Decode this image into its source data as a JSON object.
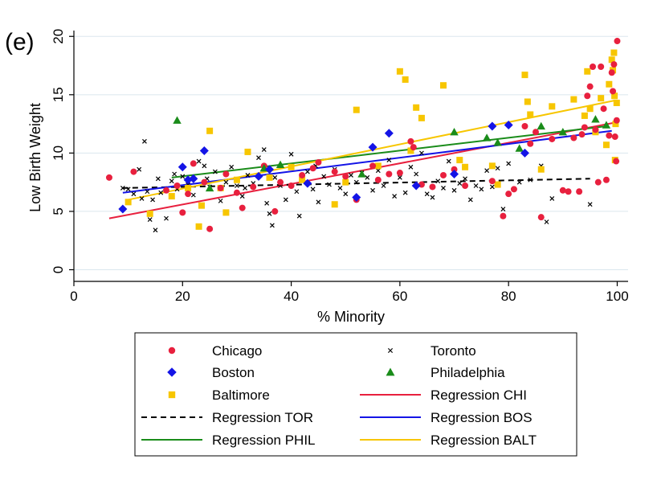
{
  "chart_data": {
    "type": "scatter",
    "panel_label": "(e)",
    "xlabel": "% Minority",
    "ylabel": "Low Birth Weight",
    "xlim": [
      0,
      102
    ],
    "ylim": [
      -1,
      20.5
    ],
    "xticks": [
      0,
      20,
      40,
      60,
      80,
      100
    ],
    "yticks": [
      0,
      5,
      10,
      15,
      20
    ],
    "grid": "horizontal",
    "legend_position": "bottom",
    "series": [
      {
        "name": "Chicago",
        "marker": "circle",
        "color": "#e8203e",
        "points": [
          [
            6.5,
            7.9
          ],
          [
            11,
            8.4
          ],
          [
            17,
            6.8
          ],
          [
            19,
            7.2
          ],
          [
            20,
            4.9
          ],
          [
            21,
            6.5
          ],
          [
            22,
            9.1
          ],
          [
            24,
            7.5
          ],
          [
            25,
            3.5
          ],
          [
            27,
            7.0
          ],
          [
            28,
            8.2
          ],
          [
            30,
            6.6
          ],
          [
            31,
            5.3
          ],
          [
            33,
            7.1
          ],
          [
            35,
            8.9
          ],
          [
            37,
            5.0
          ],
          [
            38,
            7.5
          ],
          [
            40,
            7.2
          ],
          [
            42,
            8.1
          ],
          [
            44,
            8.7
          ],
          [
            45,
            9.2
          ],
          [
            48,
            8.4
          ],
          [
            50,
            8.0
          ],
          [
            52,
            6.0
          ],
          [
            55,
            8.9
          ],
          [
            56,
            7.7
          ],
          [
            58,
            8.2
          ],
          [
            60,
            8.3
          ],
          [
            62,
            11.0
          ],
          [
            62.5,
            10.5
          ],
          [
            64,
            7.3
          ],
          [
            66,
            7.1
          ],
          [
            68,
            8.1
          ],
          [
            70,
            8.6
          ],
          [
            72,
            7.2
          ],
          [
            77,
            7.6
          ],
          [
            79,
            4.6
          ],
          [
            80,
            6.5
          ],
          [
            81,
            6.9
          ],
          [
            83,
            12.3
          ],
          [
            84,
            10.8
          ],
          [
            85,
            11.8
          ],
          [
            86,
            4.5
          ],
          [
            88,
            11.2
          ],
          [
            90,
            6.8
          ],
          [
            91,
            6.7
          ],
          [
            92,
            11.3
          ],
          [
            93,
            6.7
          ],
          [
            93.5,
            11.6
          ],
          [
            94,
            12.2
          ],
          [
            94.5,
            14.9
          ],
          [
            95,
            15.7
          ],
          [
            95.5,
            17.4
          ],
          [
            96,
            12.0
          ],
          [
            96.5,
            7.5
          ],
          [
            97,
            17.4
          ],
          [
            97.5,
            13.8
          ],
          [
            98,
            7.7
          ],
          [
            98.5,
            11.5
          ],
          [
            99,
            16.9
          ],
          [
            99.2,
            15.3
          ],
          [
            99.4,
            17.6
          ],
          [
            99.6,
            11.4
          ],
          [
            99.8,
            9.3
          ],
          [
            100,
            19.6
          ],
          [
            99.9,
            12.8
          ]
        ]
      },
      {
        "name": "Boston",
        "marker": "diamond",
        "color": "#1414e6",
        "points": [
          [
            9,
            5.2
          ],
          [
            20,
            8.8
          ],
          [
            21,
            7.7
          ],
          [
            22,
            7.8
          ],
          [
            24,
            10.2
          ],
          [
            34,
            8.0
          ],
          [
            36,
            8.6
          ],
          [
            43,
            7.4
          ],
          [
            52,
            6.2
          ],
          [
            55,
            10.5
          ],
          [
            58,
            11.7
          ],
          [
            63,
            7.2
          ],
          [
            70,
            8.2
          ],
          [
            77,
            12.3
          ],
          [
            80,
            12.4
          ],
          [
            83,
            10.0
          ]
        ]
      },
      {
        "name": "Philadelphia",
        "marker": "triangle",
        "color": "#1a8c1a",
        "points": [
          [
            19,
            12.8
          ],
          [
            25,
            7.0
          ],
          [
            35,
            8.7
          ],
          [
            38,
            9.0
          ],
          [
            53,
            8.2
          ],
          [
            70,
            11.8
          ],
          [
            76,
            11.3
          ],
          [
            78,
            10.9
          ],
          [
            82,
            10.4
          ],
          [
            86,
            12.3
          ],
          [
            90,
            11.8
          ],
          [
            96,
            12.9
          ],
          [
            98,
            12.4
          ]
        ]
      },
      {
        "name": "Baltimore",
        "marker": "square",
        "color": "#f7c600",
        "points": [
          [
            10,
            5.8
          ],
          [
            14,
            4.8
          ],
          [
            18,
            6.3
          ],
          [
            21,
            7.0
          ],
          [
            23,
            3.7
          ],
          [
            23.5,
            5.5
          ],
          [
            25,
            11.9
          ],
          [
            27,
            7.0
          ],
          [
            28,
            4.9
          ],
          [
            30,
            7.7
          ],
          [
            32,
            10.1
          ],
          [
            36,
            7.9
          ],
          [
            40,
            8.8
          ],
          [
            42,
            7.7
          ],
          [
            48,
            5.6
          ],
          [
            50,
            7.5
          ],
          [
            52,
            13.7
          ],
          [
            56,
            8.9
          ],
          [
            60,
            17.0
          ],
          [
            61,
            16.3
          ],
          [
            62,
            10.2
          ],
          [
            63,
            13.9
          ],
          [
            64,
            13.0
          ],
          [
            68,
            15.8
          ],
          [
            71,
            9.4
          ],
          [
            72,
            8.8
          ],
          [
            77,
            8.9
          ],
          [
            78,
            7.3
          ],
          [
            83,
            16.7
          ],
          [
            83.5,
            14.4
          ],
          [
            84,
            13.3
          ],
          [
            86,
            8.6
          ],
          [
            88,
            14.0
          ],
          [
            92,
            14.6
          ],
          [
            94,
            13.2
          ],
          [
            94.5,
            17.0
          ],
          [
            95,
            13.8
          ],
          [
            96,
            11.8
          ],
          [
            97,
            14.7
          ],
          [
            98,
            10.7
          ],
          [
            98.5,
            15.9
          ],
          [
            99,
            18.0
          ],
          [
            99.2,
            17.1
          ],
          [
            99.4,
            18.6
          ],
          [
            99.5,
            14.9
          ],
          [
            99.6,
            9.4
          ],
          [
            99.7,
            12.5
          ],
          [
            99.9,
            14.3
          ]
        ]
      },
      {
        "name": "Toronto",
        "marker": "x",
        "color": "#000000",
        "points": [
          [
            9,
            7.0
          ],
          [
            10,
            6.9
          ],
          [
            11,
            6.5
          ],
          [
            12,
            8.6
          ],
          [
            12.5,
            6.1
          ],
          [
            13,
            11.0
          ],
          [
            13.5,
            6.7
          ],
          [
            14,
            4.3
          ],
          [
            14.5,
            6.0
          ],
          [
            15,
            3.4
          ],
          [
            15.5,
            7.8
          ],
          [
            16,
            6.6
          ],
          [
            17,
            4.4
          ],
          [
            18,
            7.6
          ],
          [
            19,
            6.9
          ],
          [
            20,
            8.0
          ],
          [
            21,
            7.3
          ],
          [
            22,
            6.4
          ],
          [
            23,
            9.3
          ],
          [
            24,
            8.9
          ],
          [
            25,
            7.1
          ],
          [
            26,
            8.4
          ],
          [
            27,
            5.9
          ],
          [
            28,
            7.5
          ],
          [
            29,
            8.8
          ],
          [
            30,
            7.2
          ],
          [
            31,
            6.3
          ],
          [
            32,
            8.1
          ],
          [
            33,
            7.4
          ],
          [
            34,
            9.6
          ],
          [
            35,
            10.3
          ],
          [
            35.5,
            5.7
          ],
          [
            36,
            4.8
          ],
          [
            36.5,
            3.8
          ],
          [
            37,
            7.9
          ],
          [
            38,
            7.2
          ],
          [
            39,
            6.0
          ],
          [
            40,
            9.9
          ],
          [
            41,
            6.7
          ],
          [
            41.5,
            4.6
          ],
          [
            42,
            7.7
          ],
          [
            43,
            8.4
          ],
          [
            44,
            6.9
          ],
          [
            45,
            5.8
          ],
          [
            46,
            8.0
          ],
          [
            47,
            7.3
          ],
          [
            48,
            8.6
          ],
          [
            49,
            7.0
          ],
          [
            50,
            6.5
          ],
          [
            51,
            8.1
          ],
          [
            52,
            7.5
          ],
          [
            53,
            8.3
          ],
          [
            54,
            7.9
          ],
          [
            55,
            6.8
          ],
          [
            56,
            8.5
          ],
          [
            57,
            7.2
          ],
          [
            58,
            9.4
          ],
          [
            59,
            6.3
          ],
          [
            60,
            7.9
          ],
          [
            61,
            6.6
          ],
          [
            62,
            8.8
          ],
          [
            63,
            8.2
          ],
          [
            64,
            10.0
          ],
          [
            65,
            6.5
          ],
          [
            66,
            6.2
          ],
          [
            67,
            7.6
          ],
          [
            68,
            7.0
          ],
          [
            69,
            9.3
          ],
          [
            70,
            6.8
          ],
          [
            71,
            7.4
          ],
          [
            72,
            7.8
          ],
          [
            73,
            6.0
          ],
          [
            74,
            7.2
          ],
          [
            75,
            6.9
          ],
          [
            76,
            8.5
          ],
          [
            77,
            7.1
          ],
          [
            78,
            8.7
          ],
          [
            79,
            5.2
          ],
          [
            80,
            9.1
          ],
          [
            82,
            7.5
          ],
          [
            84,
            7.7
          ],
          [
            86,
            8.9
          ],
          [
            87,
            4.1
          ],
          [
            88,
            6.1
          ],
          [
            95,
            5.6
          ],
          [
            18.5,
            8.2
          ],
          [
            24.5,
            7.8
          ],
          [
            31.5,
            7.0
          ],
          [
            44.5,
            8.9
          ]
        ]
      }
    ],
    "regressions": [
      {
        "name": "Regression CHI",
        "color": "#e8203e",
        "dash": false,
        "x": [
          6.5,
          99.5
        ],
        "y": [
          4.4,
          12.6
        ]
      },
      {
        "name": "Regression TOR",
        "color": "#000000",
        "dash": true,
        "x": [
          9,
          95
        ],
        "y": [
          7.0,
          7.8
        ]
      },
      {
        "name": "Regression BOS",
        "color": "#1414e6",
        "dash": false,
        "x": [
          9,
          99
        ],
        "y": [
          6.6,
          11.9
        ]
      },
      {
        "name": "Regression PHIL",
        "color": "#1a8c1a",
        "dash": false,
        "x": [
          18,
          98
        ],
        "y": [
          7.9,
          12.3
        ]
      },
      {
        "name": "Regression BALT",
        "color": "#f7c600",
        "dash": false,
        "x": [
          10,
          99.5
        ],
        "y": [
          6.0,
          14.5
        ]
      }
    ],
    "legend": [
      {
        "label": "Chicago",
        "kind": "marker",
        "ref": "Chicago"
      },
      {
        "label": "Toronto",
        "kind": "marker",
        "ref": "Toronto"
      },
      {
        "label": "Boston",
        "kind": "marker",
        "ref": "Boston"
      },
      {
        "label": "Philadelphia",
        "kind": "marker",
        "ref": "Philadelphia"
      },
      {
        "label": "Baltimore",
        "kind": "marker",
        "ref": "Baltimore"
      },
      {
        "label": "Regression CHI",
        "kind": "line",
        "ref": "Regression CHI"
      },
      {
        "label": "Regression TOR",
        "kind": "line",
        "ref": "Regression TOR"
      },
      {
        "label": "Regression BOS",
        "kind": "line",
        "ref": "Regression BOS"
      },
      {
        "label": "Regression PHIL",
        "kind": "line",
        "ref": "Regression PHIL"
      },
      {
        "label": "Regression BALT",
        "kind": "line",
        "ref": "Regression BALT"
      }
    ]
  }
}
